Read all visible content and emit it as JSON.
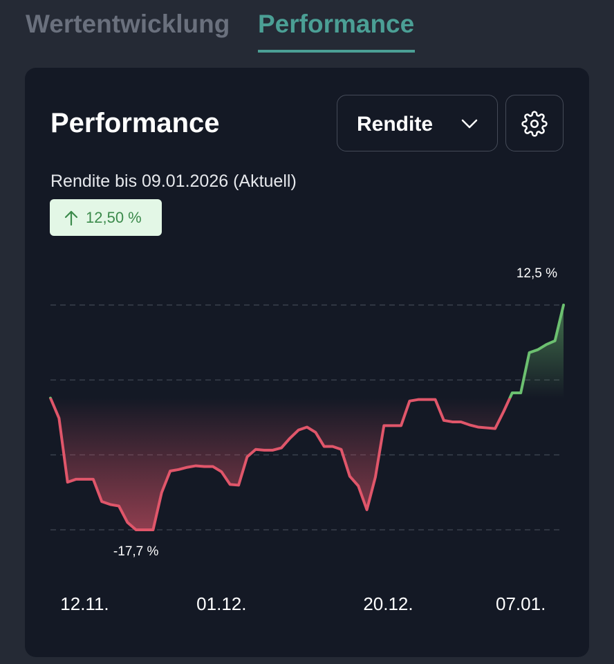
{
  "tabs": {
    "items": [
      "Wertentwicklung",
      "Performance"
    ],
    "active": 1
  },
  "card": {
    "title": "Performance",
    "dropdown": "Rendite",
    "subtitle": "Rendite bis 09.01.2026 (Aktuell)",
    "badge": "12,50 %"
  },
  "chart_data": {
    "type": "line",
    "x": [
      0,
      1,
      2,
      3,
      4,
      5,
      6,
      7,
      8,
      9,
      10,
      11,
      12,
      13,
      14,
      15,
      16,
      17,
      18,
      19,
      20,
      21,
      22,
      23,
      24,
      25,
      26,
      27,
      28,
      29,
      30,
      31,
      32,
      33,
      34,
      35,
      36,
      37,
      38,
      39,
      40,
      41,
      42,
      43,
      44,
      45,
      46,
      47,
      48,
      49,
      50,
      51,
      52,
      53,
      54,
      55,
      56,
      57,
      58,
      59,
      60
    ],
    "values": [
      0.0,
      -2.7,
      -11.3,
      -10.9,
      -10.9,
      -10.9,
      -13.9,
      -14.3,
      -14.5,
      -16.7,
      -17.7,
      -17.7,
      -17.7,
      -12.7,
      -9.8,
      -9.6,
      -9.3,
      -9.1,
      -9.2,
      -9.2,
      -9.9,
      -11.6,
      -11.7,
      -7.9,
      -6.9,
      -7.0,
      -7.0,
      -6.7,
      -5.4,
      -4.3,
      -3.9,
      -4.6,
      -6.5,
      -6.5,
      -6.9,
      -10.5,
      -11.8,
      -15.0,
      -10.6,
      -3.7,
      -3.7,
      -3.7,
      -0.4,
      -0.2,
      -0.2,
      -0.2,
      -3.0,
      -3.2,
      -3.2,
      -3.6,
      -3.9,
      -4.0,
      -4.1,
      -1.8,
      0.7,
      0.7,
      6.1,
      6.5,
      7.2,
      7.7,
      12.5
    ],
    "xlim": [
      0,
      60
    ],
    "xticks": [
      {
        "value": 4,
        "label": "12.11."
      },
      {
        "value": 20,
        "label": "01.12."
      },
      {
        "value": 39.5,
        "label": "20.12."
      },
      {
        "value": 55,
        "label": "07.01."
      }
    ],
    "ylim": [
      -17.7,
      12.5
    ],
    "ygrid": [
      12.5,
      2.43,
      -7.63,
      -17.7
    ],
    "color_positive": "#6cc070",
    "color_negative": "#e0566a",
    "annotations": [
      {
        "text": "12,5 %",
        "x": 60,
        "y": 12.5
      },
      {
        "text": "-17,7 %",
        "x": 10,
        "y": -17.7
      }
    ]
  }
}
